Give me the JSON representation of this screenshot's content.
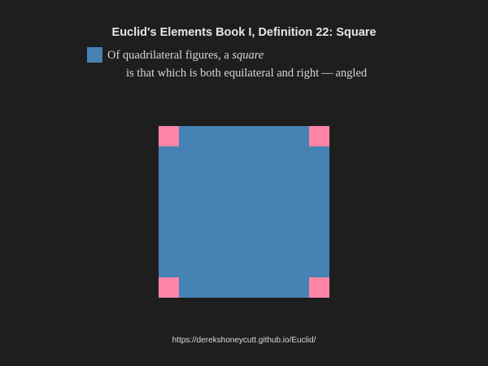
{
  "title": "Euclid's Elements Book I, Definition 22: Square",
  "definition": {
    "line1_prefix": "Of quadrilateral figures, a ",
    "line1_term": "square",
    "line2": "is that which is both equilateral and right — angled"
  },
  "colors": {
    "square_fill": "#4682b4",
    "right_angle_marker": "#ff85a8",
    "background": "#1e1e1e"
  },
  "footer_url": "https://derekshoneycutt.github.io/Euclid/"
}
